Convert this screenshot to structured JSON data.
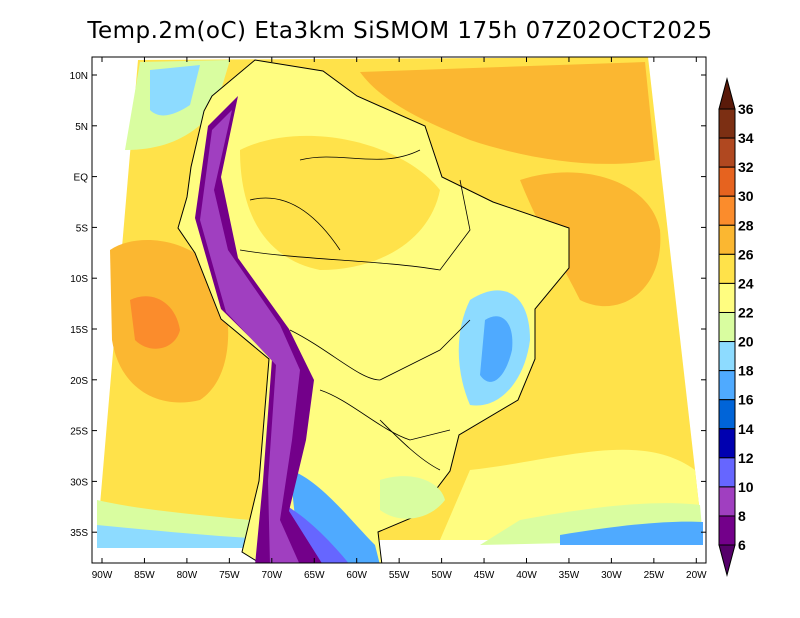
{
  "title": "Temp.2m(oC) Eta3km SiSMOM 175h 07Z02OCT2025",
  "lat_labels": [
    "10N",
    "5N",
    "EQ",
    "5S",
    "10S",
    "15S",
    "20S",
    "25S",
    "30S",
    "35S"
  ],
  "lon_labels": [
    "90W",
    "85W",
    "80W",
    "75W",
    "70W",
    "65W",
    "60W",
    "55W",
    "50W",
    "45W",
    "40W",
    "35W",
    "30W",
    "25W",
    "20W"
  ],
  "colorbar": {
    "labels": [
      "36",
      "34",
      "32",
      "30",
      "28",
      "26",
      "24",
      "22",
      "20",
      "18",
      "16",
      "14",
      "12",
      "10",
      "8",
      "6"
    ],
    "colors": [
      "#5a1a0a",
      "#7c2f13",
      "#b04820",
      "#e6631f",
      "#fb8c2c",
      "#fbb731",
      "#ffe24a",
      "#fffd80",
      "#d9fda0",
      "#8ddbff",
      "#4faaff",
      "#0064d8",
      "#0000b0",
      "#6666ff",
      "#a03fc0",
      "#73008a",
      "#55006a"
    ]
  }
}
